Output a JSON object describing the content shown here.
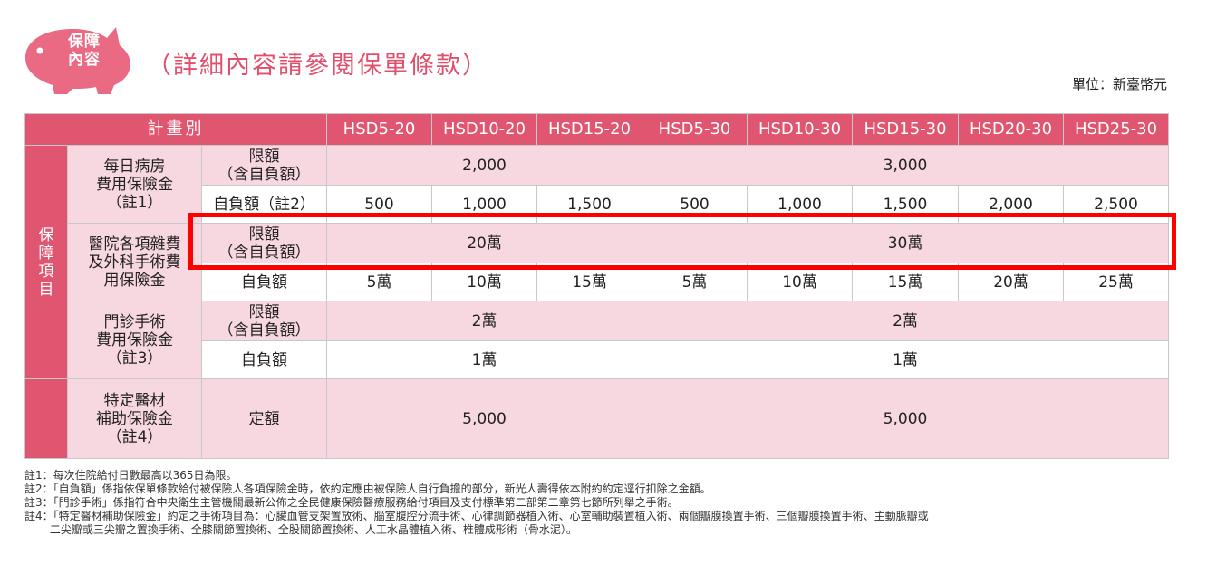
{
  "header": {
    "badge": [
      "保障",
      "內容"
    ],
    "title": "（詳細內容請參閱保單條款）",
    "unit": "單位：新臺幣元"
  },
  "table": {
    "plan_label": "計畫別",
    "plans": [
      "HSD5-20",
      "HSD10-20",
      "HSD15-20",
      "HSD5-30",
      "HSD10-30",
      "HSD15-30",
      "HSD20-30",
      "HSD25-30"
    ],
    "side_label": [
      "保",
      "障",
      "項",
      "目"
    ],
    "daily_room": {
      "name": [
        "每日病房",
        "費用保險金",
        "（註1）"
      ],
      "limit_label": [
        "限額",
        "（含自負額）"
      ],
      "limit_20": "2,000",
      "limit_30": "3,000",
      "deductible_label": "自負額（註2）",
      "deductibles": [
        "500",
        "1,000",
        "1,500",
        "500",
        "1,000",
        "1,500",
        "2,000",
        "2,500"
      ]
    },
    "hospital_misc": {
      "name": [
        "醫院各項雜費",
        "及外科手術費",
        "用保險金"
      ],
      "limit_label": [
        "限額",
        "（含自負額）"
      ],
      "limit_20": "20萬",
      "limit_30": "30萬",
      "deductible_label": "自負額",
      "deductibles": [
        "5萬",
        "10萬",
        "15萬",
        "5萬",
        "10萬",
        "15萬",
        "20萬",
        "25萬"
      ]
    },
    "outpatient": {
      "name": [
        "門診手術",
        "費用保險金",
        "（註3）"
      ],
      "limit_label": [
        "限額",
        "（含自負額）"
      ],
      "limit_20": "2萬",
      "limit_30": "2萬",
      "deductible_label": "自負額",
      "deductible_20": "1萬",
      "deductible_30": "1萬"
    },
    "special_material": {
      "name": [
        "特定醫材",
        "補助保險金",
        "（註4）"
      ],
      "label": "定額",
      "value_20": "5,000",
      "value_30": "5,000"
    }
  },
  "notes": [
    "註1：每次住院給付日數最高以365日為限。",
    "註2：「自負額」係指依保單條款給付被保險人各項保險金時，依約定應由被保險人自行負擔的部分，新光人壽得依本附約約定逕行扣除之金額。",
    "註3：「門診手術」係指符合中央衛生主管機關最新公佈之全民健康保險醫療服務給付項目及支付標準第二部第二章第七節所列舉之手術。",
    "註4：「特定醫材補助保險金」約定之手術項目為：心臟血管支架置放術、腦室腹腔分流手術、心律調節器植入術、心室輔助裝置植入術、兩個瓣膜換置手術、三個瓣膜換置手術、主動脈瓣或",
    "　　 二尖瓣或三尖瓣之置換手術、全膝關節置換術、全股關節置換術、人工水晶體植入術、椎體成形術（骨水泥）。"
  ],
  "colors": {
    "accent": "#e0556f",
    "pink_fill": "#f8d8e0",
    "highlight": "#ff0000"
  }
}
